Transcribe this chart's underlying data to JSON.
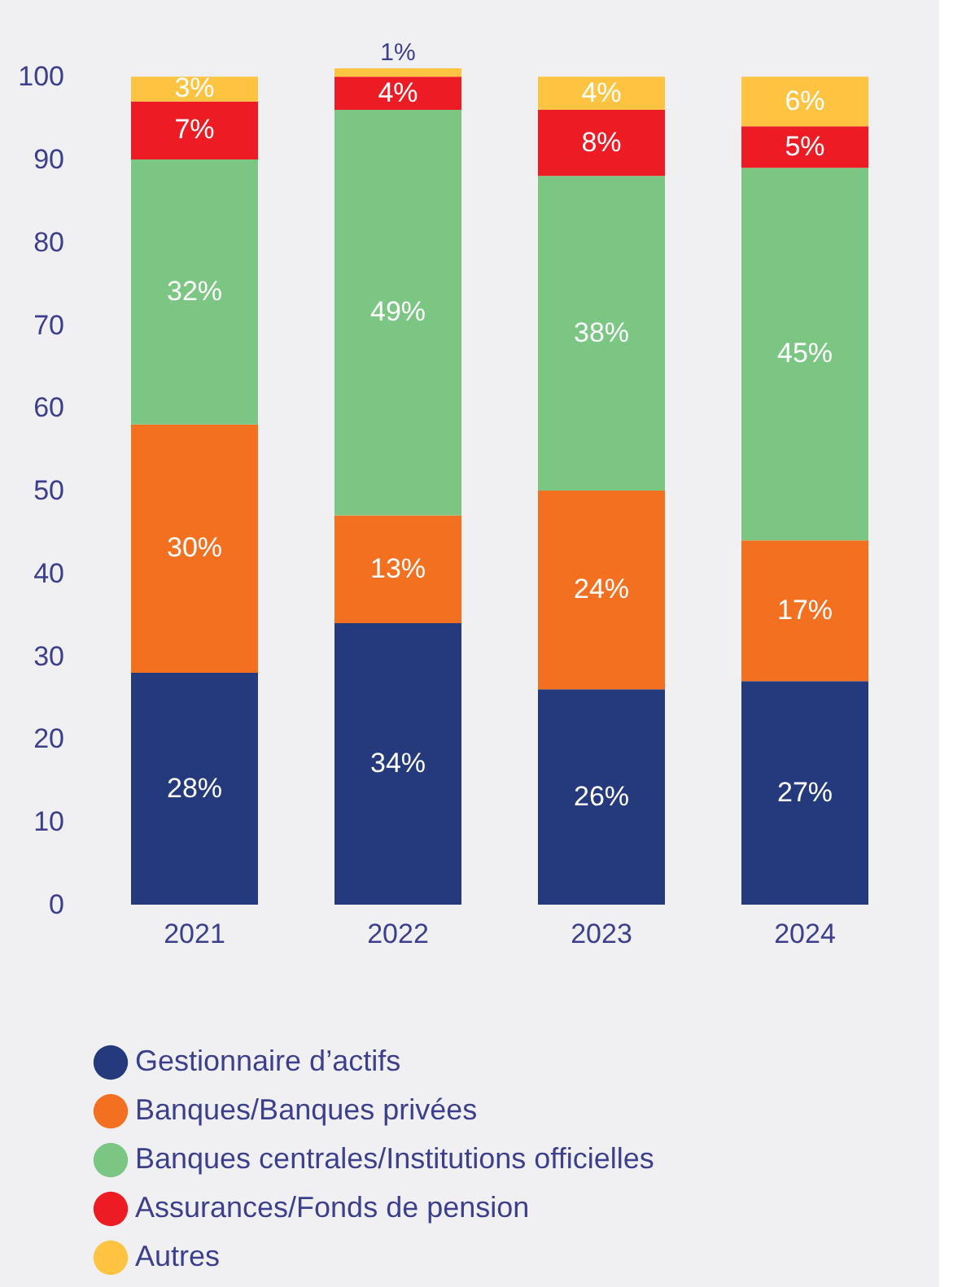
{
  "chart_data": {
    "type": "bar",
    "stacked": true,
    "categories": [
      "2021",
      "2022",
      "2023",
      "2024"
    ],
    "ylim": [
      0,
      101
    ],
    "yticks": [
      0,
      10,
      20,
      30,
      40,
      50,
      60,
      70,
      80,
      90,
      100
    ],
    "grid": false,
    "legend": "bottom",
    "series": [
      {
        "name": "Gestionnaire d’actifs",
        "color": "#253a7d",
        "values": [
          28,
          34,
          26,
          27
        ],
        "value_labels": [
          "28%",
          "34%",
          "26%",
          "27%"
        ]
      },
      {
        "name": "Banques/Banques privées",
        "color": "#f37021",
        "values": [
          30,
          13,
          24,
          17
        ],
        "value_labels": [
          "30%",
          "13%",
          "24%",
          "17%"
        ]
      },
      {
        "name": "Banques centrales/Institutions officielles",
        "color": "#7bc683",
        "values": [
          32,
          49,
          38,
          45
        ],
        "value_labels": [
          "32%",
          "49%",
          "38%",
          "45%"
        ]
      },
      {
        "name": "Assurances/Fonds de pension",
        "color": "#ed1c24",
        "values": [
          7,
          4,
          8,
          5
        ],
        "value_labels": [
          "7%",
          "4%",
          "8%",
          "5%"
        ]
      },
      {
        "name": "Autres",
        "color": "#fec340",
        "values": [
          3,
          1,
          4,
          6
        ],
        "value_labels": [
          "3%",
          "1%",
          "4%",
          "6%"
        ]
      }
    ]
  }
}
